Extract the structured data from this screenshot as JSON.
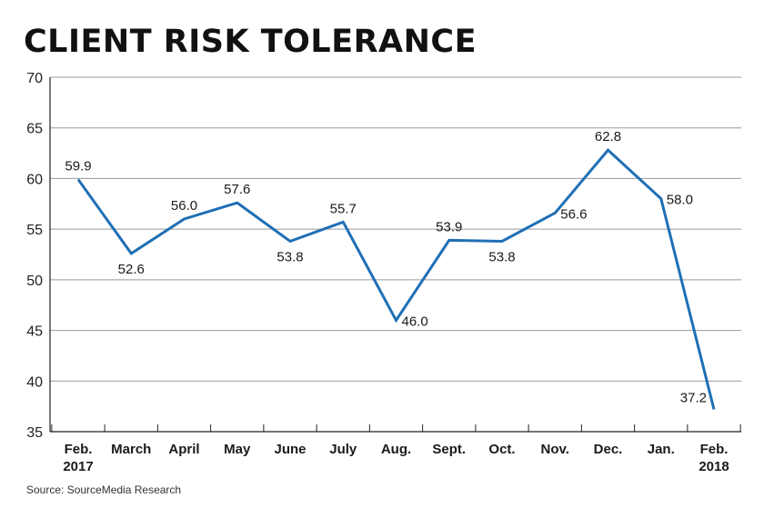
{
  "title": "CLIENT RISK TOLERANCE",
  "source": "Source: SourceMedia Research",
  "chart_data": {
    "type": "line",
    "title": "CLIENT RISK TOLERANCE",
    "xlabel": "",
    "ylabel": "",
    "ylim": [
      35,
      70
    ],
    "yticks": [
      35,
      40,
      45,
      50,
      55,
      60,
      65,
      70
    ],
    "grid": true,
    "line_color": "#1f6fb5",
    "categories": [
      [
        "Feb.",
        "2017"
      ],
      [
        "March"
      ],
      [
        "April"
      ],
      [
        "May"
      ],
      [
        "June"
      ],
      [
        "July"
      ],
      [
        "Aug."
      ],
      [
        "Sept."
      ],
      [
        "Oct."
      ],
      [
        "Nov."
      ],
      [
        "Dec."
      ],
      [
        "Jan."
      ],
      [
        "Feb.",
        "2018"
      ]
    ],
    "values": [
      59.9,
      52.6,
      56.0,
      57.6,
      53.8,
      55.7,
      46.0,
      53.9,
      53.8,
      56.6,
      62.8,
      58.0,
      37.2
    ],
    "labels": [
      "59.9",
      "52.6",
      "56.0",
      "57.6",
      "53.8",
      "55.7",
      "46.0",
      "53.9",
      "53.8",
      "56.6",
      "62.8",
      "58.0",
      "37.2"
    ]
  }
}
